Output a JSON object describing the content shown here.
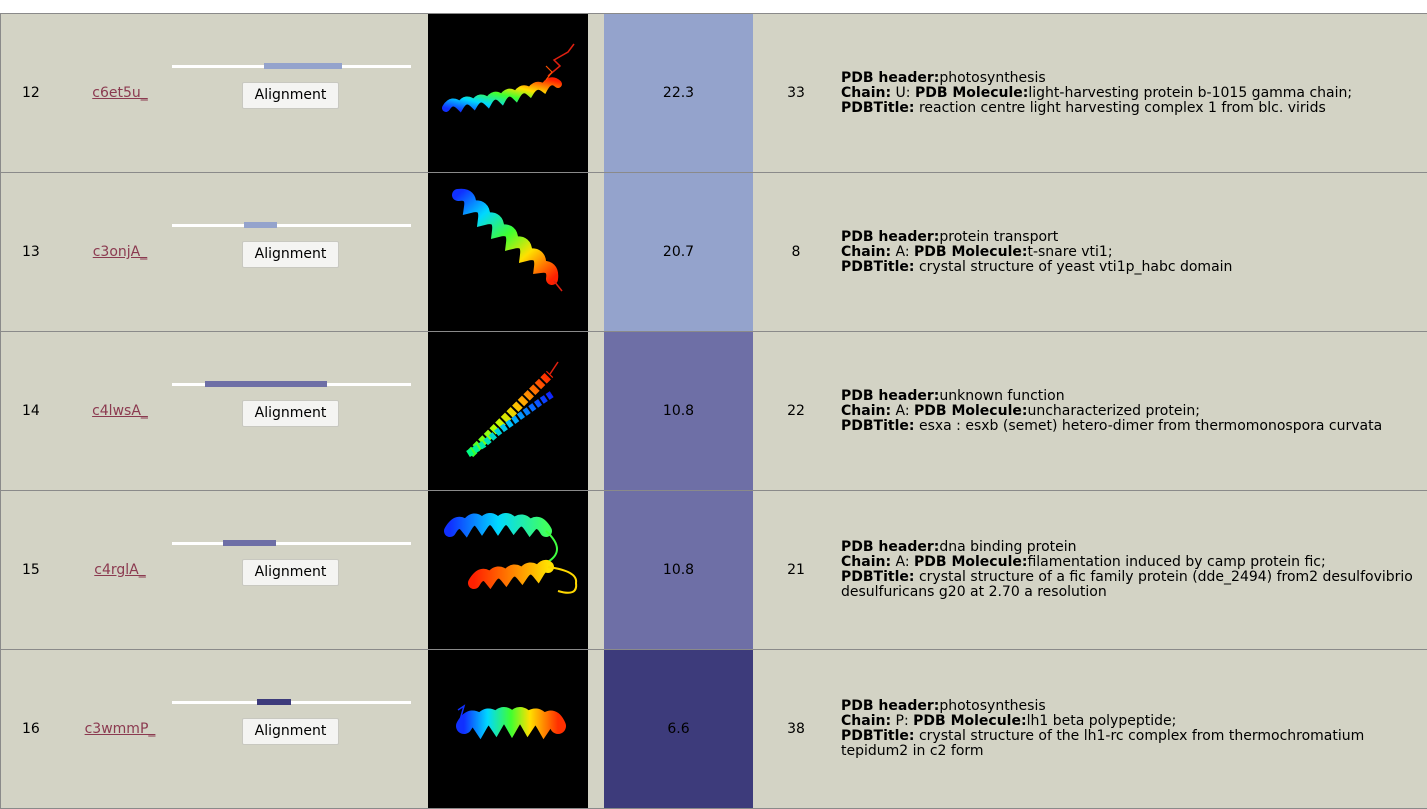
{
  "table": {
    "button_label": "Alignment",
    "header_label": "PDB header:",
    "chain_label": "Chain:",
    "molecule_label": "PDB Molecule:",
    "title_label": "PDBTitle:",
    "rows": [
      {
        "rank": "12",
        "template_id": "c6et5u_",
        "coverage": {
          "start": 0.385,
          "end": 0.71
        },
        "confidence": "22.3",
        "confidence_color": "#94a3cc",
        "identity": "33",
        "pdb_header": "photosynthesis",
        "chain": "U",
        "molecule": "light-harvesting protein b-1015 gamma chain;",
        "title": "reaction centre light harvesting complex 1 from blc. virids",
        "structure_icon": "helix-ribbon-icon"
      },
      {
        "rank": "13",
        "template_id": "c3onjA_",
        "coverage": {
          "start": 0.3,
          "end": 0.44
        },
        "confidence": "20.7",
        "confidence_color": "#94a3cc",
        "identity": "8",
        "pdb_header": "protein transport",
        "chain": "A",
        "molecule": "t-snare vti1;",
        "title": "crystal structure of yeast vti1p_habc domain",
        "structure_icon": "helix-ribbon-icon"
      },
      {
        "rank": "14",
        "template_id": "c4lwsA_",
        "coverage": {
          "start": 0.14,
          "end": 0.65
        },
        "confidence": "10.8",
        "confidence_color": "#6e6fa6",
        "identity": "22",
        "pdb_header": "unknown function",
        "chain": "A",
        "molecule": "uncharacterized protein;",
        "title": "esxa : esxb (semet) hetero-dimer from thermomonospora curvata",
        "structure_icon": "helix-hairpin-ribbon-icon"
      },
      {
        "rank": "15",
        "template_id": "c4rglA_",
        "coverage": {
          "start": 0.215,
          "end": 0.435
        },
        "confidence": "10.8",
        "confidence_color": "#6e6fa6",
        "identity": "21",
        "pdb_header": "dna binding protein",
        "chain": "A",
        "molecule": "filamentation induced by camp protein fic;",
        "title": "crystal structure of a fic family protein (dde_2494) from2 desulfovibrio desulfuricans g20 at 2.70 a resolution",
        "structure_icon": "helix-pair-ribbon-icon"
      },
      {
        "rank": "16",
        "template_id": "c3wmmP_",
        "coverage": {
          "start": 0.355,
          "end": 0.5
        },
        "confidence": "6.6",
        "confidence_color": "#3d3b7b",
        "identity": "38",
        "pdb_header": "photosynthesis",
        "chain": "P",
        "molecule": "lh1 beta polypeptide;",
        "title": "crystal structure of the lh1-rc complex from thermochromatium tepidum2 in c2 form",
        "structure_icon": "short-helix-ribbon-icon"
      }
    ]
  }
}
